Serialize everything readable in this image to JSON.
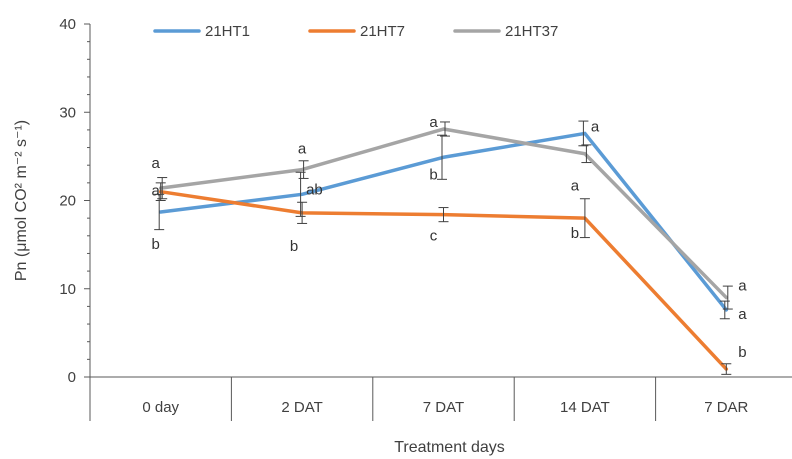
{
  "chart_data": {
    "type": "line",
    "xlabel": "Treatment days",
    "ylabel": "Pn (μmol CO² m⁻² s⁻¹)",
    "ylim": [
      0,
      40
    ],
    "yticks": [
      0,
      10,
      20,
      30,
      40
    ],
    "categories": [
      "0 day",
      "2 DAT",
      "7 DAT",
      "14 DAT",
      "7 DAR"
    ],
    "legend_position": "top",
    "grid": false,
    "series": [
      {
        "name": "21HT1",
        "color": "#5B9BD5",
        "values": [
          18.7,
          20.7,
          24.9,
          27.6,
          7.6
        ],
        "errors": [
          2.0,
          2.5,
          2.5,
          1.4,
          1.0
        ],
        "letters": [
          "b",
          "ab",
          "b",
          "a",
          "a"
        ]
      },
      {
        "name": "21HT7",
        "color": "#ED7D31",
        "values": [
          21.0,
          18.6,
          18.4,
          18.0,
          0.9
        ],
        "errors": [
          1.0,
          1.2,
          0.8,
          2.2,
          0.6
        ],
        "letters": [
          "a",
          "b",
          "c",
          "b",
          "b"
        ]
      },
      {
        "name": "21HT37",
        "color": "#A5A5A5",
        "values": [
          21.4,
          23.5,
          28.1,
          25.3,
          9.0
        ],
        "errors": [
          1.2,
          1.0,
          0.8,
          1.0,
          1.3
        ],
        "letters": [
          "a",
          "a",
          "a",
          "a",
          "a"
        ]
      }
    ]
  }
}
